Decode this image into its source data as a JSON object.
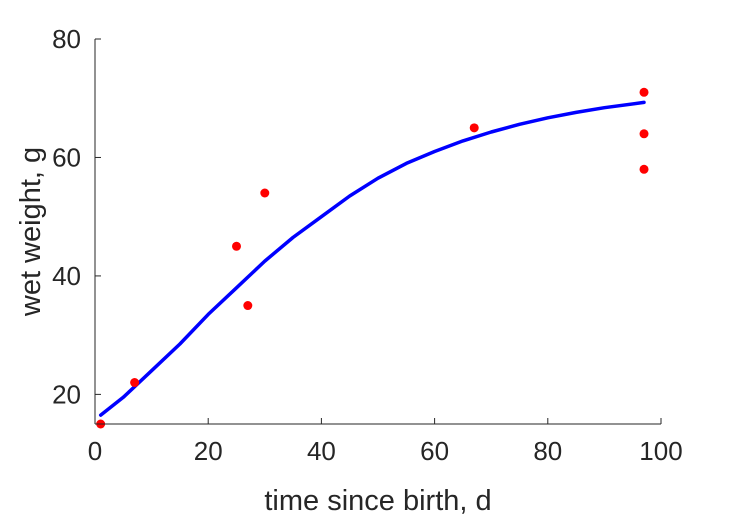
{
  "chart_data": {
    "type": "scatter",
    "title": "",
    "xlabel": "time since birth, d",
    "ylabel": "wet weight, g",
    "xlim": [
      0,
      100
    ],
    "ylim": [
      15,
      80
    ],
    "x_ticks": [
      0,
      20,
      40,
      60,
      80,
      100
    ],
    "y_ticks": [
      20,
      40,
      60,
      80
    ],
    "grid": false,
    "legend": "none",
    "series": [
      {
        "kind": "scatter",
        "color": "#ff0000",
        "points": [
          {
            "x": 1,
            "y": 15
          },
          {
            "x": 7,
            "y": 22
          },
          {
            "x": 25,
            "y": 45
          },
          {
            "x": 27,
            "y": 35
          },
          {
            "x": 30,
            "y": 54
          },
          {
            "x": 67,
            "y": 65
          },
          {
            "x": 97,
            "y": 71
          },
          {
            "x": 97,
            "y": 64
          },
          {
            "x": 97,
            "y": 58
          }
        ]
      },
      {
        "kind": "line",
        "color": "#0000ff",
        "points": [
          {
            "x": 1,
            "y": 16.5
          },
          {
            "x": 5,
            "y": 19.5
          },
          {
            "x": 10,
            "y": 24
          },
          {
            "x": 15,
            "y": 28.5
          },
          {
            "x": 20,
            "y": 33.5
          },
          {
            "x": 25,
            "y": 38
          },
          {
            "x": 30,
            "y": 42.5
          },
          {
            "x": 35,
            "y": 46.5
          },
          {
            "x": 40,
            "y": 50
          },
          {
            "x": 45,
            "y": 53.5
          },
          {
            "x": 50,
            "y": 56.5
          },
          {
            "x": 55,
            "y": 59
          },
          {
            "x": 60,
            "y": 61
          },
          {
            "x": 65,
            "y": 62.8
          },
          {
            "x": 70,
            "y": 64.3
          },
          {
            "x": 75,
            "y": 65.6
          },
          {
            "x": 80,
            "y": 66.7
          },
          {
            "x": 85,
            "y": 67.6
          },
          {
            "x": 90,
            "y": 68.4
          },
          {
            "x": 97,
            "y": 69.3
          }
        ]
      }
    ]
  }
}
